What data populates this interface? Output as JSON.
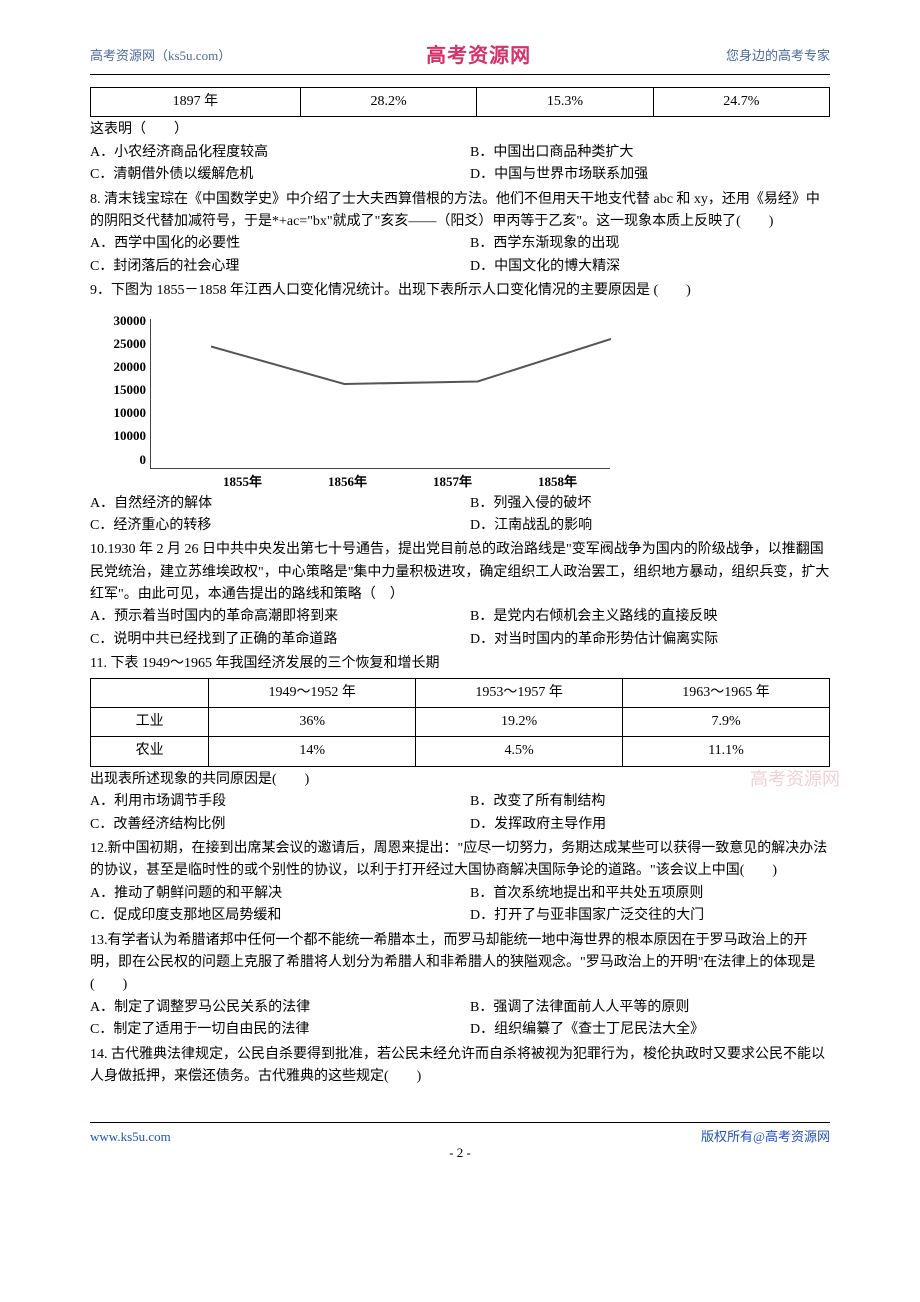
{
  "header": {
    "left": "高考资源网（ks5u.com）",
    "center": "高考资源网",
    "right": "您身边的高考专家"
  },
  "table_top": {
    "cells": [
      "1897 年",
      "28.2%",
      "15.3%",
      "24.7%"
    ]
  },
  "q7": {
    "prompt": "这表明（　　）",
    "A": "A．小农经济商品化程度较高",
    "B": "B．中国出口商品种类扩大",
    "C": "C．清朝借外债以缓解危机",
    "D": "D．中国与世界市场联系加强"
  },
  "q8": {
    "text": "8. 清末钱宝琮在《中国数学史》中介绍了士大夫西算借根的方法。他们不但用天干地支代替 abc 和 xy，还用《易经》中的阴阳爻代替加减符号，于是*+ac=\"bx\"就成了\"亥亥——（阳爻）甲丙等于乙亥\"。这一现象本质上反映了(　　)",
    "A": "A．西学中国化的必要性",
    "B": "B．西学东渐现象的出现",
    "C": "C．封闭落后的社会心理",
    "D": "D．中国文化的博大精深"
  },
  "q9": {
    "text": "9．下图为 1855－1858 年江西人口变化情况统计。出现下表所示人口变化情况的主要原因是 (　　)",
    "chart": {
      "type": "line",
      "categories": [
        "1855年",
        "1856年",
        "1857年",
        "1858年"
      ],
      "values": [
        24500,
        17000,
        17500,
        26000
      ],
      "yticks": [
        "30000",
        "25000",
        "20000",
        "15000",
        "10000",
        "10000",
        "0"
      ],
      "ylim": [
        0,
        30000
      ],
      "line_color": "#555555",
      "line_width": 2,
      "background_color": "#ffffff",
      "axis_color": "#444444",
      "font_size": 13,
      "font_weight": "bold"
    },
    "A": "A．自然经济的解体",
    "B": "B．列强入侵的破坏",
    "C": "C．经济重心的转移",
    "D": "D．江南战乱的影响"
  },
  "q10": {
    "text": "10.1930 年 2 月 26 日中共中央发出第七十号通告，提出党目前总的政治路线是\"变军阀战争为国内的阶级战争，以推翻国民党统治，建立苏维埃政权\"，中心策略是\"集中力量积极进攻，确定组织工人政治罢工，组织地方暴动，组织兵变，扩大红军\"。由此可见，本通告提出的路线和策略（　）",
    "A": "A．预示着当时国内的革命高潮即将到来",
    "B": "B．是党内右倾机会主义路线的直接反映",
    "C": "C．说明中共已经找到了正确的革命道路",
    "D": "D．对当时国内的革命形势估计偏离实际"
  },
  "q11": {
    "text": "11. 下表 1949～1965 年我国经济发展的三个恢复和增长期",
    "table": {
      "cols": [
        "",
        "1949～1952 年",
        "1953～1957 年",
        "1963～1965 年"
      ],
      "rows": [
        [
          "工业",
          "36%",
          "19.2%",
          "7.9%"
        ],
        [
          "农业",
          "14%",
          "4.5%",
          "11.1%"
        ]
      ]
    },
    "prompt": "出现表所述现象的共同原因是(　　)",
    "A": "A．利用市场调节手段",
    "B": "B．改变了所有制结构",
    "C": "C．改善经济结构比例",
    "D": "D．发挥政府主导作用"
  },
  "q12": {
    "text": "12.新中国初期，在接到出席某会议的邀请后，周恩来提出：\"应尽一切努力，务期达成某些可以获得一致意见的解决办法的协议，甚至是临时性的或个别性的协议，以利于打开经过大国协商解决国际争论的道路。\"该会议上中国(　　)",
    "A": "A．推动了朝鲜问题的和平解决",
    "B": "B．首次系统地提出和平共处五项原则",
    "C": "C．促成印度支那地区局势缓和",
    "D": "D．打开了与亚非国家广泛交往的大门"
  },
  "q13": {
    "text": "13.有学者认为希腊诸邦中任何一个都不能统一希腊本土，而罗马却能统一地中海世界的根本原因在于罗马政治上的开明，即在公民权的问题上克服了希腊将人划分为希腊人和非希腊人的狭隘观念。\"罗马政治上的开明\"在法律上的体现是(　　)",
    "A": "A．制定了调整罗马公民关系的法律",
    "B": "B．强调了法律面前人人平等的原则",
    "C": "C．制定了适用于一切自由民的法律",
    "D": "D．组织编纂了《查士丁尼民法大全》"
  },
  "q14": {
    "text": "14. 古代雅典法律规定，公民自杀要得到批准，若公民未经允许而自杀将被视为犯罪行为，梭伦执政时又要求公民不能以人身做抵押，来偿还债务。古代雅典的这些规定(　　)"
  },
  "watermark": "高考资源网",
  "footer": {
    "left": "www.ks5u.com",
    "right": "版权所有@高考资源网",
    "page": "- 2 -"
  }
}
